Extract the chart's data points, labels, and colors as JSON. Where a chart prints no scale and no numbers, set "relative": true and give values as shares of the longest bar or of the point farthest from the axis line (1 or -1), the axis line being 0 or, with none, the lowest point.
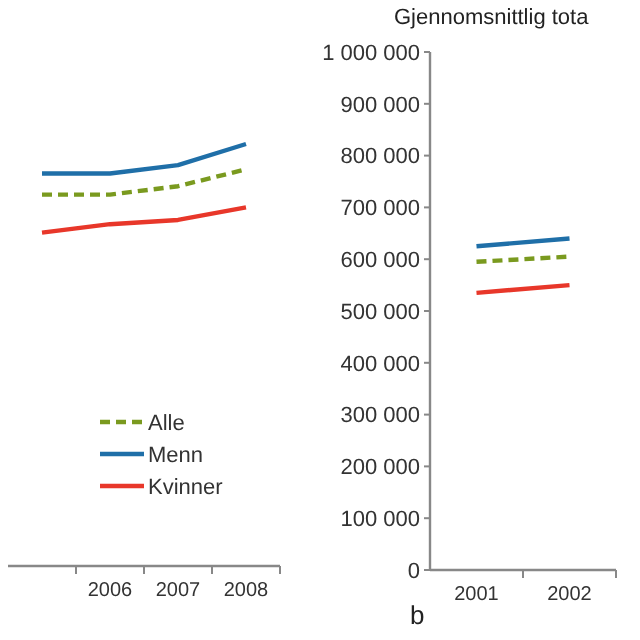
{
  "chart_data": [
    {
      "type": "line",
      "relative": true,
      "categories": [
        null,
        "2006",
        "2007",
        "2008"
      ],
      "legend": "bottom right",
      "series": [
        {
          "name": "Alle",
          "color": "#7a9a1f",
          "line_style": "dashed",
          "values": [
            0.88,
            0.88,
            0.9,
            0.94
          ]
        },
        {
          "name": "Menn",
          "color": "#1f6fa8",
          "values": [
            0.93,
            0.93,
            0.95,
            1
          ]
        },
        {
          "name": "Kvinner",
          "color": "#e8372a",
          "values": [
            0.79,
            0.81,
            0.82,
            0.85
          ]
        }
      ]
    },
    {
      "type": "line",
      "ylabel": "Gjennomsnittlig tota",
      "categories": [
        "2001",
        "2002"
      ],
      "ylim": [
        0,
        1000000
      ],
      "yticks": [
        0,
        {
          "value": 100000,
          "label": "100 000"
        },
        {
          "value": 200000,
          "label": "200 000"
        },
        {
          "value": 300000,
          "label": "300 000"
        },
        {
          "value": 400000,
          "label": "400 000"
        },
        {
          "value": 500000,
          "label": "500 000"
        },
        {
          "value": 600000,
          "label": "600 000"
        },
        {
          "value": 700000,
          "label": "700 000"
        },
        {
          "value": 800000,
          "label": "800 000"
        },
        {
          "value": 900000,
          "label": "900 000"
        },
        {
          "value": 1000000,
          "label": "1 000 000"
        }
      ],
      "annotations": [
        "b"
      ],
      "series": [
        {
          "color": "#7a9a1f",
          "line_style": "dashed",
          "values": [
            595000,
            605000
          ]
        },
        {
          "color": "#1f6fa8",
          "values": [
            625000,
            640000
          ]
        },
        {
          "color": "#e8372a",
          "values": [
            535000,
            550000
          ]
        }
      ]
    }
  ]
}
